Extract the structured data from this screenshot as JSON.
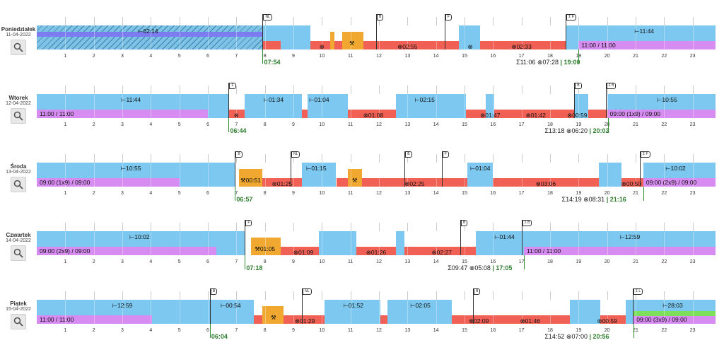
{
  "colors": {
    "rest": "#7dc8f0",
    "drive": "#f06055",
    "work": "#f0a830",
    "avail": "#d68cf0",
    "hatch_bg": "#7ec3e6",
    "blue_bar": "#7c7cf0",
    "green_bar": "#7de05a",
    "inner_blue": "#1a8ee0"
  },
  "hours": [
    "1",
    "2",
    "3",
    "4",
    "5",
    "6",
    "7",
    "8",
    "9",
    "10",
    "11",
    "12",
    "13",
    "14",
    "15",
    "16",
    "17",
    "18",
    "19",
    "20",
    "21",
    "22",
    "23"
  ],
  "days": [
    {
      "name": "Poniedziałek",
      "date": "11-04-2022",
      "start": "07:54",
      "summary": {
        "sum": "Σ11:06",
        "drive": "⊗07:28",
        "end": "| 19:00"
      },
      "summary_x": 18.0,
      "start_x": 7.92,
      "end_x": 19.0,
      "hatched": [
        0,
        7.92
      ],
      "segments": [
        {
          "t": "rest",
          "s": 7.92,
          "e": 8.55,
          "h": "top"
        },
        {
          "t": "drive",
          "s": 7.92,
          "e": 8.55,
          "h": "bottom"
        },
        {
          "t": "rest",
          "s": 8.55,
          "e": 9.6,
          "h": "full"
        },
        {
          "t": "drive",
          "s": 9.6,
          "e": 10.3,
          "h": "bottom"
        },
        {
          "t": "work",
          "s": 10.3,
          "e": 10.45,
          "h": "mid"
        },
        {
          "t": "drive",
          "s": 10.45,
          "e": 10.7,
          "h": "bottom"
        },
        {
          "t": "work",
          "s": 10.7,
          "e": 11.45,
          "h": "mid"
        },
        {
          "t": "drive",
          "s": 11.45,
          "e": 14.8,
          "h": "bottom"
        },
        {
          "t": "rest",
          "s": 14.8,
          "e": 15.55,
          "h": "full"
        },
        {
          "t": "drive",
          "s": 15.55,
          "e": 18.55,
          "h": "bottom"
        },
        {
          "t": "rest",
          "s": 18.55,
          "e": 23.8,
          "h": "full"
        },
        {
          "t": "avail",
          "s": 19.0,
          "e": 23.8,
          "h": "bottom"
        }
      ],
      "labels": [
        {
          "text": "⊢62:14",
          "x": 3.9,
          "y": 3
        },
        {
          "text": "⊗",
          "x": 10.0,
          "y": 25
        },
        {
          "text": "⚒",
          "x": 11.05,
          "y": 20
        },
        {
          "text": "⊗02:55",
          "x": 13.0,
          "y": 25
        },
        {
          "text": "⊗",
          "x": 15.2,
          "y": 25
        },
        {
          "text": "⊗02:33",
          "x": 17.0,
          "y": 25
        },
        {
          "text": "⊢11:44",
          "x": 21.3,
          "y": 3
        }
      ],
      "rest_text": {
        "text": "11:00 / 11:00",
        "x": 19.05
      },
      "flags": [
        {
          "text": "NL",
          "x": 7.92
        },
        {
          "text": "B",
          "x": 11.9
        },
        {
          "text": "F",
          "x": 14.3
        },
        {
          "text": "Σ F",
          "x": 18.55
        }
      ]
    },
    {
      "name": "Wtorek",
      "date": "12-04-2022",
      "start": "06:44",
      "summary": {
        "sum": "Σ13:18",
        "drive": "⊗06:20",
        "end": "| 20:02"
      },
      "summary_x": 19.0,
      "start_x": 6.73,
      "end_x": 20.03,
      "hatched": null,
      "segments": [
        {
          "t": "rest",
          "s": 0,
          "e": 6.73,
          "h": "full"
        },
        {
          "t": "avail",
          "s": 0,
          "e": 6.0,
          "h": "bottom"
        },
        {
          "t": "drive",
          "s": 6.73,
          "e": 7.3,
          "h": "bottom"
        },
        {
          "t": "rest",
          "s": 7.3,
          "e": 9.3,
          "h": "full"
        },
        {
          "t": "drive",
          "s": 9.3,
          "e": 9.5,
          "h": "bottom"
        },
        {
          "t": "rest",
          "s": 9.5,
          "e": 10.9,
          "h": "full"
        },
        {
          "t": "drive",
          "s": 10.9,
          "e": 12.6,
          "h": "bottom"
        },
        {
          "t": "rest",
          "s": 12.6,
          "e": 15.05,
          "h": "full"
        },
        {
          "t": "drive",
          "s": 15.05,
          "e": 15.75,
          "h": "bottom"
        },
        {
          "t": "rest",
          "s": 15.75,
          "e": 16.05,
          "h": "full"
        },
        {
          "t": "drive",
          "s": 16.05,
          "e": 18.85,
          "h": "bottom"
        },
        {
          "t": "rest",
          "s": 18.85,
          "e": 19.35,
          "h": "full"
        },
        {
          "t": "drive",
          "s": 19.35,
          "e": 20.0,
          "h": "bottom"
        },
        {
          "t": "rest",
          "s": 20.0,
          "e": 23.8,
          "h": "full"
        },
        {
          "t": "avail",
          "s": 20.0,
          "e": 23.8,
          "h": "bottom"
        }
      ],
      "labels": [
        {
          "text": "⊢11:44",
          "x": 3.3,
          "y": 3
        },
        {
          "text": "⊗",
          "x": 7.0,
          "y": 25
        },
        {
          "text": "⊢01:34",
          "x": 8.3,
          "y": 3
        },
        {
          "text": "⊢01:04",
          "x": 9.9,
          "y": 3
        },
        {
          "text": "⊗01:08",
          "x": 11.8,
          "y": 25
        },
        {
          "text": "⊢02:15",
          "x": 13.6,
          "y": 3
        },
        {
          "text": "⊗01:47",
          "x": 15.9,
          "y": 25
        },
        {
          "text": "⊗01:42",
          "x": 17.5,
          "y": 25
        },
        {
          "text": "⊗00:59",
          "x": 18.95,
          "y": 25
        },
        {
          "text": "⊢10:55",
          "x": 22.1,
          "y": 3
        }
      ],
      "rest_text": {
        "text": "11:00 / 11:00",
        "x": 0.05
      },
      "rest_text2": {
        "text": "09:00 (1x9) / 09:00",
        "x": 20.05
      },
      "flags": [
        {
          "text": "F",
          "x": 6.73
        },
        {
          "text": "B",
          "x": 18.85
        },
        {
          "text": "Σ B",
          "x": 19.95
        }
      ]
    },
    {
      "name": "Środa",
      "date": "13-04-2022",
      "start": "06:57",
      "summary": {
        "sum": "Σ14:19",
        "drive": "⊗08:31",
        "end": "| 21:16"
      },
      "summary_x": 19.6,
      "start_x": 6.95,
      "end_x": 21.27,
      "hatched": null,
      "segments": [
        {
          "t": "rest",
          "s": 0,
          "e": 6.95,
          "h": "full"
        },
        {
          "t": "avail",
          "s": 0,
          "e": 5.0,
          "h": "bottom"
        },
        {
          "t": "work",
          "s": 7.1,
          "e": 7.9,
          "h": "mid"
        },
        {
          "t": "drive",
          "s": 7.9,
          "e": 9.3,
          "h": "bottom"
        },
        {
          "t": "rest",
          "s": 9.3,
          "e": 10.5,
          "h": "full"
        },
        {
          "t": "drive",
          "s": 10.5,
          "e": 10.9,
          "h": "bottom"
        },
        {
          "t": "work",
          "s": 10.9,
          "e": 11.4,
          "h": "mid"
        },
        {
          "t": "drive",
          "s": 11.4,
          "e": 15.1,
          "h": "bottom"
        },
        {
          "t": "rest",
          "s": 15.1,
          "e": 16.0,
          "h": "full"
        },
        {
          "t": "drive",
          "s": 16.0,
          "e": 19.7,
          "h": "bottom"
        },
        {
          "t": "rest",
          "s": 19.7,
          "e": 20.5,
          "h": "full"
        },
        {
          "t": "drive",
          "s": 20.5,
          "e": 21.27,
          "h": "bottom"
        },
        {
          "t": "rest",
          "s": 21.27,
          "e": 23.8,
          "h": "full"
        },
        {
          "t": "avail",
          "s": 21.27,
          "e": 23.8,
          "h": "bottom"
        }
      ],
      "labels": [
        {
          "text": "⊢10:55",
          "x": 3.3,
          "y": 3
        },
        {
          "text": "⚒00:51",
          "x": 7.5,
          "y": 20
        },
        {
          "text": "⊗01:25",
          "x": 8.6,
          "y": 25
        },
        {
          "text": "⊢01:15",
          "x": 9.8,
          "y": 3
        },
        {
          "text": "⚒",
          "x": 11.15,
          "y": 20
        },
        {
          "text": "⊗02:25",
          "x": 13.25,
          "y": 25
        },
        {
          "text": "⊢01:04",
          "x": 15.55,
          "y": 3
        },
        {
          "text": "⊗03:06",
          "x": 17.85,
          "y": 25
        },
        {
          "text": "⊗00:50",
          "x": 20.85,
          "y": 25
        },
        {
          "text": "⊢10:02",
          "x": 22.4,
          "y": 3
        }
      ],
      "rest_text": {
        "text": "09:00 (1x9) / 09:00",
        "x": 0.05
      },
      "rest_text2": {
        "text": "09:00 (2x9) / 09:00",
        "x": 21.32
      },
      "flags": [
        {
          "text": "B",
          "x": 6.95
        },
        {
          "text": "NL",
          "x": 8.9
        },
        {
          "text": "B",
          "x": 12.9
        },
        {
          "text": "F",
          "x": 14.2
        },
        {
          "text": "Σ F",
          "x": 21.15
        }
      ]
    },
    {
      "name": "Czwartek",
      "date": "14-04-2022",
      "start": "07:18",
      "summary": {
        "sum": "Σ09:47",
        "drive": "⊗05:08",
        "end": "| 17:05"
      },
      "summary_x": 15.6,
      "start_x": 7.3,
      "end_x": 17.08,
      "hatched": null,
      "segments": [
        {
          "t": "rest",
          "s": 0,
          "e": 7.3,
          "h": "full"
        },
        {
          "t": "avail",
          "s": 0,
          "e": 6.3,
          "h": "bottom"
        },
        {
          "t": "work",
          "s": 7.5,
          "e": 8.55,
          "h": "mid"
        },
        {
          "t": "drive",
          "s": 8.55,
          "e": 9.9,
          "h": "bottom"
        },
        {
          "t": "rest",
          "s": 9.9,
          "e": 11.2,
          "h": "full"
        },
        {
          "t": "drive",
          "s": 11.2,
          "e": 12.6,
          "h": "bottom"
        },
        {
          "t": "rest",
          "s": 12.6,
          "e": 12.9,
          "h": "full"
        },
        {
          "t": "drive",
          "s": 12.9,
          "e": 15.4,
          "h": "bottom"
        },
        {
          "t": "rest",
          "s": 15.4,
          "e": 23.8,
          "h": "full"
        },
        {
          "t": "avail",
          "s": 17.08,
          "e": 23.8,
          "h": "bottom"
        }
      ],
      "labels": [
        {
          "text": "⊢10:02",
          "x": 3.6,
          "y": 3
        },
        {
          "text": "⚒01:05",
          "x": 8.0,
          "y": 20
        },
        {
          "text": "⊗01:09",
          "x": 9.35,
          "y": 25
        },
        {
          "text": "⊗01:26",
          "x": 11.9,
          "y": 25
        },
        {
          "text": "⊗02:27",
          "x": 14.2,
          "y": 25
        },
        {
          "text": "⊢01:44",
          "x": 16.4,
          "y": 3
        },
        {
          "text": "⊢12:59",
          "x": 20.8,
          "y": 3
        }
      ],
      "rest_text": {
        "text": "09:00 (2x9) / 09:00",
        "x": 0.05
      },
      "rest_text2": {
        "text": "11:00 / 11:00",
        "x": 17.13
      },
      "flags": [
        {
          "text": "F",
          "x": 7.3
        },
        {
          "text": "B",
          "x": 14.85
        },
        {
          "text": "Σ B",
          "x": 17.0
        }
      ]
    },
    {
      "name": "Piątek",
      "date": "15-04-2022",
      "start": "06:04",
      "summary": {
        "sum": "Σ14:52",
        "drive": "⊗07:00",
        "end": "| 20:56"
      },
      "summary_x": 19.0,
      "start_x": 6.07,
      "end_x": 20.93,
      "hatched": null,
      "segments": [
        {
          "t": "rest",
          "s": 0,
          "e": 6.07,
          "h": "full"
        },
        {
          "t": "avail",
          "s": 0,
          "e": 4.05,
          "h": "bottom"
        },
        {
          "t": "rest",
          "s": 6.07,
          "e": 7.6,
          "h": "full"
        },
        {
          "t": "drive",
          "s": 7.6,
          "e": 7.9,
          "h": "bottom"
        },
        {
          "t": "work",
          "s": 7.9,
          "e": 8.65,
          "h": "mid"
        },
        {
          "t": "drive",
          "s": 8.65,
          "e": 10.1,
          "h": "bottom"
        },
        {
          "t": "rest",
          "s": 10.1,
          "e": 12.05,
          "h": "full"
        },
        {
          "t": "drive",
          "s": 12.05,
          "e": 12.3,
          "h": "bottom"
        },
        {
          "t": "rest",
          "s": 12.3,
          "e": 14.55,
          "h": "full"
        },
        {
          "t": "drive",
          "s": 14.55,
          "e": 18.7,
          "h": "bottom"
        },
        {
          "t": "rest",
          "s": 18.7,
          "e": 19.75,
          "h": "full"
        },
        {
          "t": "drive",
          "s": 19.75,
          "e": 20.65,
          "h": "bottom"
        },
        {
          "t": "rest",
          "s": 20.65,
          "e": 23.8,
          "h": "full"
        },
        {
          "t": "avail",
          "s": 20.93,
          "e": 23.8,
          "h": "bottom"
        }
      ],
      "labels": [
        {
          "text": "⊢12:59",
          "x": 3.0,
          "y": 3
        },
        {
          "text": "⊢00:54",
          "x": 6.8,
          "y": 3
        },
        {
          "text": "⚒",
          "x": 8.3,
          "y": 20
        },
        {
          "text": "⊗01:29",
          "x": 9.4,
          "y": 25
        },
        {
          "text": "⊢01:52",
          "x": 11.1,
          "y": 3
        },
        {
          "text": "⊢02:05",
          "x": 13.45,
          "y": 3
        },
        {
          "text": "⊗02:09",
          "x": 15.5,
          "y": 25
        },
        {
          "text": "⊗01:46",
          "x": 17.3,
          "y": 25
        },
        {
          "text": "⊗00:59",
          "x": 20.0,
          "y": 25
        },
        {
          "text": "⊢28:03",
          "x": 22.3,
          "y": 3
        }
      ],
      "rest_text": {
        "text": "11:00 / 11:00",
        "x": 0.05
      },
      "rest_text2": {
        "text": "09:00 (3x9) / 09:00",
        "x": 20.98
      },
      "flags": [
        {
          "text": "B",
          "x": 6.07
        },
        {
          "text": "NL",
          "x": 9.3
        },
        {
          "text": "B",
          "x": 15.3
        },
        {
          "text": "Σ L",
          "x": 20.9
        }
      ]
    }
  ]
}
